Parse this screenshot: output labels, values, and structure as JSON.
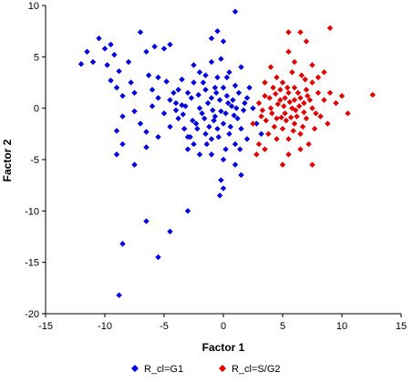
{
  "chart_data": {
    "type": "scatter",
    "title": "",
    "xlabel": "Factor 1",
    "ylabel": "Factor 2",
    "xlim": [
      -15,
      15
    ],
    "ylim": [
      -20,
      10
    ],
    "xticks": [
      "-15",
      "-10",
      "-5",
      "0",
      "5",
      "10",
      "15"
    ],
    "yticks": [
      "10",
      "5",
      "0",
      "-5",
      "-10",
      "-15",
      "-20"
    ],
    "grid": false,
    "legend_position": "bottom",
    "marker": "diamond",
    "series": [
      {
        "name": "R_cl=G1",
        "color": "#0000e0",
        "points": [
          [
            -12,
            4.3
          ],
          [
            -11.5,
            5.5
          ],
          [
            -11,
            4.5
          ],
          [
            -10.5,
            6.8
          ],
          [
            -10,
            5.8
          ],
          [
            -9.5,
            6.2
          ],
          [
            -9.8,
            4.2
          ],
          [
            -9.2,
            5.2
          ],
          [
            -8.8,
            3.6
          ],
          [
            -9.5,
            2.7
          ],
          [
            -9.0,
            2.0
          ],
          [
            -8.5,
            1.2
          ],
          [
            -8.0,
            4.5
          ],
          [
            -7.8,
            2.5
          ],
          [
            -7.5,
            1.5
          ],
          [
            -7.0,
            7.4
          ],
          [
            -7.5,
            -0.3
          ],
          [
            -6.5,
            5.5
          ],
          [
            -6.3,
            3.2
          ],
          [
            -6.0,
            1.8
          ],
          [
            -5.8,
            6.0
          ],
          [
            -5.5,
            3.0
          ],
          [
            -5.0,
            5.8
          ],
          [
            -4.8,
            2.6
          ],
          [
            -4.5,
            6.2
          ],
          [
            -4.0,
            0.5
          ],
          [
            -7.0,
            -1.5
          ],
          [
            -6.5,
            -2.3
          ],
          [
            -8.5,
            -0.8
          ],
          [
            -9.0,
            -2.2
          ],
          [
            -8.5,
            -3.5
          ],
          [
            -9.0,
            -4.5
          ],
          [
            -7.5,
            -5.5
          ],
          [
            -6.5,
            -3.8
          ],
          [
            -5.5,
            -2.8
          ],
          [
            -4.5,
            -1.8
          ],
          [
            -4.0,
            -0.2
          ],
          [
            -3.5,
            0.3
          ],
          [
            -3.0,
            1.5
          ],
          [
            -2.5,
            2.5
          ],
          [
            -2.0,
            3.5
          ],
          [
            -1.5,
            1.8
          ],
          [
            -1.0,
            4.5
          ],
          [
            -0.5,
            3.0
          ],
          [
            0.0,
            2.0
          ],
          [
            0.5,
            3.5
          ],
          [
            1.0,
            2.2
          ],
          [
            1.5,
            4.0
          ],
          [
            2.0,
            1.0
          ],
          [
            -3.8,
            -1.0
          ],
          [
            -3.3,
            -2.0
          ],
          [
            -2.8,
            -2.8
          ],
          [
            -2.3,
            -1.5
          ],
          [
            -1.8,
            -0.5
          ],
          [
            -1.3,
            0.5
          ],
          [
            -0.8,
            -1.2
          ],
          [
            -0.3,
            0.8
          ],
          [
            0.2,
            -0.5
          ],
          [
            0.7,
            0.2
          ],
          [
            1.2,
            -1.0
          ],
          [
            1.7,
            -0.2
          ],
          [
            -2.0,
            0.0
          ],
          [
            -1.5,
            -2.5
          ],
          [
            -1.0,
            -3.0
          ],
          [
            -0.5,
            -2.0
          ],
          [
            0.0,
            -1.5
          ],
          [
            0.5,
            -2.5
          ],
          [
            1.0,
            -3.5
          ],
          [
            1.5,
            -2.0
          ],
          [
            2.0,
            -3.0
          ],
          [
            -2.5,
            -3.5
          ],
          [
            -3.0,
            -4.0
          ],
          [
            -2.0,
            -4.5
          ],
          [
            -1.0,
            -4.5
          ],
          [
            0.0,
            -5.0
          ],
          [
            1.0,
            -5.5
          ],
          [
            1.5,
            -6.5
          ],
          [
            -0.2,
            -7.0
          ],
          [
            0.0,
            -7.8
          ],
          [
            -0.3,
            -8.5
          ],
          [
            -3.0,
            -10.0
          ],
          [
            -6.5,
            -11.0
          ],
          [
            -4.5,
            -12.0
          ],
          [
            -8.5,
            -13.2
          ],
          [
            -5.5,
            -14.5
          ],
          [
            -8.8,
            -18.2
          ],
          [
            1.0,
            9.4
          ],
          [
            -0.5,
            7.5
          ],
          [
            0.0,
            6.5
          ],
          [
            -1.0,
            6.8
          ],
          [
            -0.2,
            4.8
          ],
          [
            -1.5,
            3.2
          ],
          [
            -2.5,
            4.2
          ],
          [
            -3.5,
            2.8
          ],
          [
            -4.2,
            1.5
          ],
          [
            -5.0,
            -0.5
          ],
          [
            -5.5,
            1.0
          ],
          [
            -6.0,
            0.2
          ],
          [
            -3.0,
            -2.8
          ],
          [
            -2.2,
            -2.0
          ],
          [
            -1.2,
            -1.8
          ],
          [
            -0.7,
            -0.8
          ],
          [
            0.3,
            1.2
          ],
          [
            0.8,
            0.8
          ],
          [
            1.3,
            1.5
          ],
          [
            1.8,
            0.5
          ],
          [
            2.2,
            2.0
          ],
          [
            2.5,
            0.0
          ],
          [
            -1.7,
            2.5
          ],
          [
            -0.7,
            2.0
          ],
          [
            0.3,
            3.0
          ],
          [
            -2.7,
            1.0
          ],
          [
            -3.2,
            0.2
          ],
          [
            -0.4,
            -2.8
          ],
          [
            0.6,
            -1.8
          ],
          [
            -1.4,
            -3.5
          ],
          [
            -2.6,
            -1.2
          ],
          [
            1.4,
            -4.0
          ],
          [
            0.2,
            -4.0
          ],
          [
            -4.5,
            0.8
          ],
          [
            -3.8,
            1.8
          ],
          [
            -1.0,
            1.0
          ],
          [
            -0.2,
            -0.3
          ],
          [
            0.4,
            0.5
          ],
          [
            -0.9,
            -0.2
          ],
          [
            1.1,
            0.0
          ],
          [
            -2.1,
            1.3
          ],
          [
            -1.6,
            -1.0
          ],
          [
            0.9,
            -0.7
          ],
          [
            -0.6,
            1.5
          ],
          [
            -3.4,
            -0.6
          ],
          [
            2.8,
            -1.5
          ],
          [
            3.2,
            -2.5
          ]
        ]
      },
      {
        "name": "R_cl=S/G2",
        "color": "#e00000",
        "points": [
          [
            2.5,
            -1.5
          ],
          [
            3.0,
            0.5
          ],
          [
            3.2,
            -0.8
          ],
          [
            3.5,
            1.2
          ],
          [
            3.0,
            -3.5
          ],
          [
            2.8,
            -4.5
          ],
          [
            3.5,
            -4.0
          ],
          [
            3.8,
            -2.5
          ],
          [
            4.0,
            0.0
          ],
          [
            4.2,
            2.0
          ],
          [
            4.5,
            -1.0
          ],
          [
            4.5,
            3.0
          ],
          [
            4.8,
            0.8
          ],
          [
            5.0,
            -2.0
          ],
          [
            5.0,
            2.5
          ],
          [
            5.2,
            -0.5
          ],
          [
            5.5,
            1.5
          ],
          [
            5.5,
            -3.0
          ],
          [
            5.8,
            0.0
          ],
          [
            5.8,
            3.5
          ],
          [
            6.0,
            -1.5
          ],
          [
            6.0,
            2.0
          ],
          [
            6.2,
            -0.8
          ],
          [
            6.5,
            1.0
          ],
          [
            6.5,
            -2.5
          ],
          [
            6.8,
            0.5
          ],
          [
            7.0,
            1.8
          ],
          [
            7.0,
            -1.0
          ],
          [
            7.2,
            -3.5
          ],
          [
            7.5,
            0.0
          ],
          [
            7.5,
            2.5
          ],
          [
            7.8,
            -0.5
          ],
          [
            8.0,
            1.5
          ],
          [
            8.5,
            3.5
          ],
          [
            8.5,
            0.8
          ],
          [
            9.0,
            1.5
          ],
          [
            9.5,
            0.5
          ],
          [
            10.5,
            -0.5
          ],
          [
            10.0,
            1.2
          ],
          [
            12.6,
            1.3
          ],
          [
            9.0,
            7.8
          ],
          [
            5.5,
            7.4
          ],
          [
            6.5,
            7.4
          ],
          [
            7.0,
            6.5
          ],
          [
            5.5,
            5.5
          ],
          [
            6.0,
            4.5
          ],
          [
            7.5,
            4.2
          ],
          [
            8.0,
            3.0
          ],
          [
            4.0,
            4.0
          ],
          [
            3.5,
            2.5
          ],
          [
            4.5,
            -3.0
          ],
          [
            5.0,
            -5.5
          ],
          [
            5.5,
            -4.5
          ],
          [
            6.5,
            -4.0
          ],
          [
            7.5,
            -5.5
          ],
          [
            4.3,
            -1.8
          ],
          [
            4.8,
            1.8
          ],
          [
            5.3,
            -1.2
          ],
          [
            5.6,
            0.6
          ],
          [
            6.1,
            -0.2
          ],
          [
            6.4,
            0.2
          ],
          [
            6.7,
            -1.8
          ],
          [
            6.9,
            2.8
          ],
          [
            5.1,
            0.2
          ],
          [
            4.6,
            0.4
          ],
          [
            4.1,
            -0.5
          ],
          [
            3.6,
            -1.2
          ],
          [
            3.9,
            1.0
          ],
          [
            5.4,
            2.0
          ],
          [
            5.9,
            -2.2
          ],
          [
            6.3,
            1.5
          ],
          [
            7.3,
            0.8
          ],
          [
            7.7,
            -2.0
          ],
          [
            8.2,
            -0.8
          ],
          [
            4.4,
            1.4
          ],
          [
            5.7,
            -0.9
          ],
          [
            6.6,
            3.2
          ],
          [
            8.8,
            -1.5
          ],
          [
            3.3,
            -0.2
          ],
          [
            4.9,
            -0.9
          ],
          [
            5.2,
            1.0
          ],
          [
            6.0,
            0.8
          ],
          [
            6.8,
            -0.4
          ],
          [
            7.1,
            1.2
          ]
        ]
      }
    ]
  }
}
